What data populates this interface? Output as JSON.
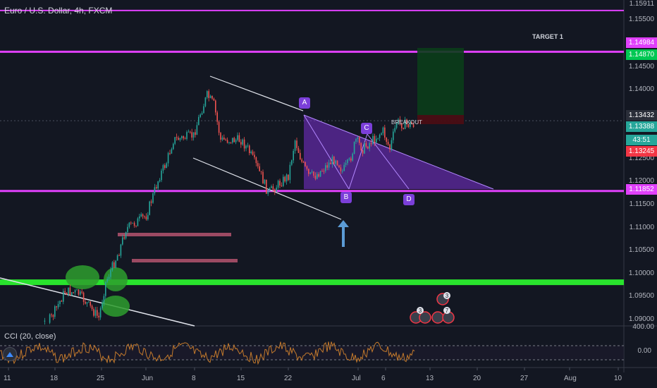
{
  "header": {
    "title": "Euro / U.S. Dollar, 4h, FXCM",
    "cci_title": "CCI (20, close)"
  },
  "price_axis": {
    "ticks": [
      "1.15500",
      "1.15000",
      "1.14500",
      "1.14000",
      "1.13500",
      "1.12500",
      "1.12000",
      "1.11500",
      "1.11000",
      "1.10500",
      "1.10000",
      "1.09500",
      "1.09000"
    ],
    "top_label": "1.15911",
    "labels": [
      {
        "text": "1.14984",
        "color": "#e040fb"
      },
      {
        "text": "1.14870",
        "color": "#00c853"
      },
      {
        "text": "1.13432",
        "color": "#2a2e39"
      },
      {
        "text": "1.13388",
        "color": "#26a69a"
      },
      {
        "text": "43:51",
        "color": "#26a69a"
      },
      {
        "text": "1.13245",
        "color": "#f23645"
      },
      {
        "text": "1.11852",
        "color": "#e040fb"
      }
    ]
  },
  "cci_axis": {
    "ticks": [
      "400.00",
      "0.00"
    ]
  },
  "time_axis": {
    "ticks": [
      "11",
      "18",
      "25",
      "Jun",
      "8",
      "15",
      "22",
      "Jul",
      "6",
      "13",
      "20",
      "27",
      "Aug",
      "10"
    ]
  },
  "annotations": {
    "target": "TARGET 1",
    "breakout": "BREAKOUT",
    "points": [
      "A",
      "B",
      "C",
      "D"
    ]
  },
  "events": {
    "count1": "3",
    "count2": "3",
    "count3": "7"
  },
  "chart_data": {
    "type": "candlestick",
    "symbol": "EURUSD",
    "interval": "4h",
    "ylim": [
      1.0885,
      1.161
    ],
    "levels": [
      1.15911,
      1.14984,
      1.11852,
      1.098
    ],
    "current_price": 1.13388,
    "close_path": [
      [
        "May 11",
        1.082
      ],
      [
        "May 18",
        1.09
      ],
      [
        "May 20",
        1.096
      ],
      [
        "May 22",
        1.0955
      ],
      [
        "May 25",
        1.09
      ],
      [
        "May 26",
        1.098
      ],
      [
        "May 28",
        1.105
      ],
      [
        "May 29",
        1.11
      ],
      [
        "Jun 1",
        1.113
      ],
      [
        "Jun 3",
        1.122
      ],
      [
        "Jun 4",
        1.125
      ],
      [
        "Jun 5",
        1.13
      ],
      [
        "Jun 8",
        1.131
      ],
      [
        "Jun 9",
        1.136
      ],
      [
        "Jun 10",
        1.14
      ],
      [
        "Jun 11",
        1.138
      ],
      [
        "Jun 12",
        1.13
      ],
      [
        "Jun 15",
        1.13
      ],
      [
        "Jun 16",
        1.128
      ],
      [
        "Jun 18",
        1.122
      ],
      [
        "Jun 19",
        1.118
      ],
      [
        "Jun 22",
        1.122
      ],
      [
        "Jun 23",
        1.13
      ],
      [
        "Jun 24",
        1.125
      ],
      [
        "Jun 25",
        1.122
      ],
      [
        "Jun 26",
        1.122
      ],
      [
        "Jun 29",
        1.126
      ],
      [
        "Jun 30",
        1.123
      ],
      [
        "Jul 1",
        1.125
      ],
      [
        "Jul 2",
        1.13
      ],
      [
        "Jul 3",
        1.128
      ],
      [
        "Jul 6",
        1.132
      ],
      [
        "Jul 7",
        1.128
      ],
      [
        "Jul 8",
        1.134
      ],
      [
        "Jul 9",
        1.1335
      ]
    ],
    "cci": {
      "name": "CCI (20, close)",
      "upper_band": 100,
      "lower_band": -100
    }
  }
}
